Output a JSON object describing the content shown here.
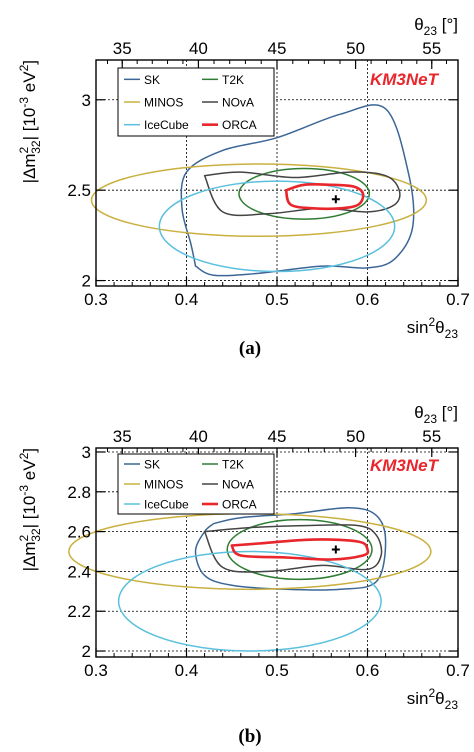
{
  "chart_data": [
    {
      "type": "line",
      "panel_label": "(a)",
      "watermark": "KM3NeT",
      "xlabel": "sin²θ23",
      "ylabel": "|Δm²32| [10⁻³ eV²]",
      "top_axis_label": "θ23 [°]",
      "xlim": [
        0.3,
        0.7
      ],
      "ylim": [
        1.97,
        3.22
      ],
      "x_ticks": [
        "0.3",
        "0.4",
        "0.5",
        "0.6",
        "0.7"
      ],
      "y_ticks": [
        "2",
        "2.5",
        "3"
      ],
      "top_ticks": [
        "35",
        "40",
        "45",
        "50",
        "55"
      ],
      "grid": true,
      "legend": [
        "SK",
        "T2K",
        "MINOS",
        "NOvA",
        "IceCube",
        "ORCA"
      ],
      "best_fit": {
        "x": 0.565,
        "y": 2.45
      },
      "series": [
        {
          "name": "SK",
          "color": "#3c6696",
          "x": [
            0.41,
            0.43,
            0.48,
            0.55,
            0.6,
            0.63,
            0.65,
            0.645,
            0.62,
            0.57,
            0.5,
            0.44,
            0.4,
            0.395,
            0.405,
            0.41
          ],
          "y": [
            2.08,
            2.03,
            2.04,
            2.08,
            2.07,
            2.12,
            2.3,
            2.6,
            2.95,
            2.92,
            2.79,
            2.72,
            2.6,
            2.4,
            2.2,
            2.08
          ]
        },
        {
          "name": "T2K",
          "color": "#2e7d32",
          "cx": 0.53,
          "cy": 2.48,
          "rx": 0.072,
          "ry": 0.14
        },
        {
          "name": "MINOS",
          "color": "#c9b040",
          "cx": 0.48,
          "cy": 2.445,
          "rx": 0.185,
          "ry": 0.2
        },
        {
          "name": "NOvA",
          "color": "#444444",
          "x": [
            0.42,
            0.46,
            0.52,
            0.58,
            0.62,
            0.635,
            0.63,
            0.6,
            0.55,
            0.49,
            0.44,
            0.42
          ],
          "y": [
            2.58,
            2.6,
            2.57,
            2.6,
            2.58,
            2.5,
            2.42,
            2.38,
            2.4,
            2.37,
            2.38,
            2.58
          ]
        },
        {
          "name": "IceCube",
          "color": "#5bc0de",
          "cx": 0.5,
          "cy": 2.3,
          "rx": 0.13,
          "ry": 0.25
        },
        {
          "name": "ORCA",
          "color": "#e8262b",
          "x": [
            0.51,
            0.53,
            0.56,
            0.585,
            0.595,
            0.59,
            0.57,
            0.54,
            0.515,
            0.51
          ],
          "y": [
            2.5,
            2.53,
            2.53,
            2.52,
            2.48,
            2.42,
            2.4,
            2.4,
            2.42,
            2.5
          ]
        }
      ]
    },
    {
      "type": "line",
      "panel_label": "(b)",
      "watermark": "KM3NeT",
      "xlabel": "sin²θ23",
      "ylabel": "|Δm²32| [10⁻³ eV²]",
      "top_axis_label": "θ23 [°]",
      "xlim": [
        0.3,
        0.7
      ],
      "ylim": [
        1.97,
        3.02
      ],
      "x_ticks": [
        "0.3",
        "0.4",
        "0.5",
        "0.6",
        "0.7"
      ],
      "y_ticks": [
        "2",
        "2.2",
        "2.4",
        "2.6",
        "2.8",
        "3"
      ],
      "top_ticks": [
        "35",
        "40",
        "45",
        "50",
        "55"
      ],
      "grid": true,
      "legend": [
        "SK",
        "T2K",
        "MINOS",
        "NOvA",
        "IceCube",
        "ORCA"
      ],
      "best_fit": {
        "x": 0.565,
        "y": 2.51
      },
      "series": [
        {
          "name": "SK",
          "color": "#3c6696",
          "x": [
            0.43,
            0.46,
            0.52,
            0.58,
            0.61,
            0.62,
            0.61,
            0.57,
            0.51,
            0.45,
            0.42,
            0.41,
            0.42,
            0.43
          ],
          "y": [
            2.64,
            2.67,
            2.69,
            2.72,
            2.68,
            2.55,
            2.35,
            2.31,
            2.31,
            2.33,
            2.38,
            2.5,
            2.6,
            2.64
          ]
        },
        {
          "name": "T2K",
          "color": "#2e7d32",
          "cx": 0.525,
          "cy": 2.51,
          "rx": 0.08,
          "ry": 0.15
        },
        {
          "name": "MINOS",
          "color": "#c9b040",
          "cx": 0.47,
          "cy": 2.5,
          "rx": 0.2,
          "ry": 0.19
        },
        {
          "name": "NOvA",
          "color": "#444444",
          "x": [
            0.42,
            0.47,
            0.53,
            0.59,
            0.61,
            0.615,
            0.6,
            0.55,
            0.49,
            0.44,
            0.42
          ],
          "y": [
            2.6,
            2.62,
            2.63,
            2.63,
            2.58,
            2.48,
            2.41,
            2.43,
            2.4,
            2.42,
            2.6
          ]
        },
        {
          "name": "IceCube",
          "color": "#5bc0de",
          "cx": 0.47,
          "cy": 2.25,
          "rx": 0.145,
          "ry": 0.25
        },
        {
          "name": "ORCA",
          "color": "#e8262b",
          "x": [
            0.45,
            0.48,
            0.54,
            0.59,
            0.6,
            0.595,
            0.56,
            0.51,
            0.46,
            0.45
          ],
          "y": [
            2.53,
            2.54,
            2.56,
            2.55,
            2.51,
            2.48,
            2.46,
            2.47,
            2.48,
            2.53
          ]
        }
      ]
    }
  ]
}
